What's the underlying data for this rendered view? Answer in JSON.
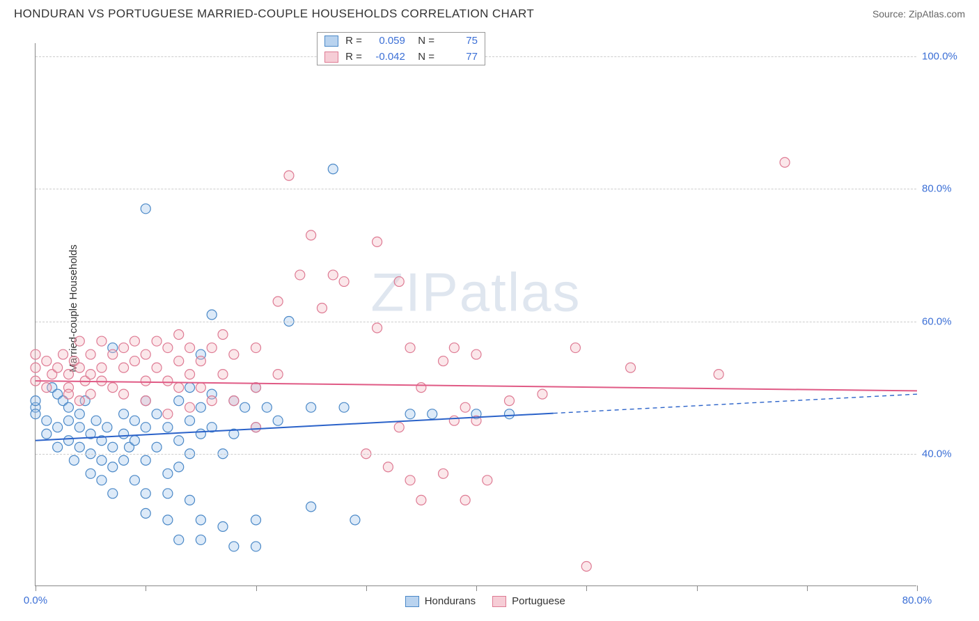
{
  "title": "HONDURAN VS PORTUGUESE MARRIED-COUPLE HOUSEHOLDS CORRELATION CHART",
  "source": "Source: ZipAtlas.com",
  "watermark": "ZIPatlas",
  "y_axis_title": "Married-couple Households",
  "chart": {
    "type": "scatter",
    "xlim": [
      0,
      80
    ],
    "ylim": [
      20,
      102
    ],
    "x_ticks": [
      0,
      10,
      20,
      30,
      40,
      50,
      60,
      70,
      80
    ],
    "x_tick_labels": {
      "0": "0.0%",
      "80": "80.0%"
    },
    "y_grid": [
      40,
      60,
      80,
      100
    ],
    "y_labels": [
      "40.0%",
      "60.0%",
      "80.0%",
      "100.0%"
    ],
    "background_color": "#ffffff",
    "grid_color": "#cccccc",
    "marker_radius": 7,
    "series": [
      {
        "name": "Hondurans",
        "fill": "#9ec4ea",
        "stroke": "#4a88c7",
        "trend": {
          "y_at_x0": 42.0,
          "y_at_x80": 49.0,
          "solid_until_x": 47,
          "color": "#2a62c9"
        },
        "points": [
          [
            0,
            47
          ],
          [
            0,
            46
          ],
          [
            0,
            48
          ],
          [
            1,
            43
          ],
          [
            1,
            45
          ],
          [
            1.5,
            50
          ],
          [
            2,
            44
          ],
          [
            2,
            41
          ],
          [
            2,
            49
          ],
          [
            2.5,
            48
          ],
          [
            3,
            42
          ],
          [
            3,
            45
          ],
          [
            3,
            47
          ],
          [
            3.5,
            39
          ],
          [
            4,
            46
          ],
          [
            4,
            44
          ],
          [
            4,
            41
          ],
          [
            4.5,
            48
          ],
          [
            5,
            43
          ],
          [
            5,
            40
          ],
          [
            5,
            37
          ],
          [
            5.5,
            45
          ],
          [
            6,
            42
          ],
          [
            6,
            39
          ],
          [
            6,
            36
          ],
          [
            6.5,
            44
          ],
          [
            7,
            56
          ],
          [
            7,
            41
          ],
          [
            7,
            38
          ],
          [
            7,
            34
          ],
          [
            8,
            46
          ],
          [
            8,
            43
          ],
          [
            8,
            39
          ],
          [
            8.5,
            41
          ],
          [
            9,
            45
          ],
          [
            9,
            42
          ],
          [
            9,
            36
          ],
          [
            10,
            48
          ],
          [
            10,
            44
          ],
          [
            10,
            39
          ],
          [
            10,
            34
          ],
          [
            10,
            31
          ],
          [
            10,
            77
          ],
          [
            11,
            46
          ],
          [
            11,
            41
          ],
          [
            12,
            44
          ],
          [
            12,
            37
          ],
          [
            12,
            34
          ],
          [
            12,
            30
          ],
          [
            13,
            48
          ],
          [
            13,
            42
          ],
          [
            13,
            38
          ],
          [
            13,
            27
          ],
          [
            14,
            50
          ],
          [
            14,
            45
          ],
          [
            14,
            40
          ],
          [
            14,
            33
          ],
          [
            15,
            55
          ],
          [
            15,
            47
          ],
          [
            15,
            43
          ],
          [
            15,
            30
          ],
          [
            15,
            27
          ],
          [
            16,
            49
          ],
          [
            16,
            61
          ],
          [
            16,
            44
          ],
          [
            17,
            40
          ],
          [
            17,
            29
          ],
          [
            18,
            48
          ],
          [
            18,
            43
          ],
          [
            18,
            26
          ],
          [
            19,
            47
          ],
          [
            20,
            50
          ],
          [
            20,
            44
          ],
          [
            20,
            30
          ],
          [
            20,
            26
          ],
          [
            21,
            47
          ],
          [
            22,
            45
          ],
          [
            23,
            60
          ],
          [
            25,
            47
          ],
          [
            25,
            32
          ],
          [
            27,
            83
          ],
          [
            28,
            47
          ],
          [
            29,
            30
          ],
          [
            34,
            46
          ],
          [
            36,
            46
          ],
          [
            40,
            46
          ],
          [
            43,
            46
          ]
        ]
      },
      {
        "name": "Portuguese",
        "fill": "#f4b9c4",
        "stroke": "#de7a93",
        "trend": {
          "y_at_x0": 51.0,
          "y_at_x80": 49.5,
          "solid_until_x": 80,
          "color": "#e05a85"
        },
        "points": [
          [
            0,
            53
          ],
          [
            0,
            51
          ],
          [
            0,
            55
          ],
          [
            1,
            50
          ],
          [
            1,
            54
          ],
          [
            1.5,
            52
          ],
          [
            2,
            53
          ],
          [
            2.5,
            55
          ],
          [
            3,
            52
          ],
          [
            3,
            50
          ],
          [
            3,
            49
          ],
          [
            3.5,
            54
          ],
          [
            4,
            53
          ],
          [
            4,
            48
          ],
          [
            4,
            57
          ],
          [
            4.5,
            51
          ],
          [
            5,
            55
          ],
          [
            5,
            52
          ],
          [
            5,
            49
          ],
          [
            6,
            57
          ],
          [
            6,
            53
          ],
          [
            6,
            51
          ],
          [
            7,
            55
          ],
          [
            7,
            50
          ],
          [
            8,
            56
          ],
          [
            8,
            53
          ],
          [
            8,
            49
          ],
          [
            9,
            57
          ],
          [
            9,
            54
          ],
          [
            10,
            55
          ],
          [
            10,
            51
          ],
          [
            10,
            48
          ],
          [
            11,
            57
          ],
          [
            11,
            53
          ],
          [
            12,
            56
          ],
          [
            12,
            51
          ],
          [
            12,
            46
          ],
          [
            13,
            58
          ],
          [
            13,
            54
          ],
          [
            13,
            50
          ],
          [
            14,
            56
          ],
          [
            14,
            52
          ],
          [
            14,
            47
          ],
          [
            15,
            54
          ],
          [
            15,
            50
          ],
          [
            16,
            56
          ],
          [
            16,
            48
          ],
          [
            17,
            58
          ],
          [
            17,
            52
          ],
          [
            18,
            55
          ],
          [
            18,
            48
          ],
          [
            20,
            56
          ],
          [
            20,
            50
          ],
          [
            20,
            44
          ],
          [
            22,
            63
          ],
          [
            22,
            52
          ],
          [
            23,
            82
          ],
          [
            24,
            67
          ],
          [
            25,
            73
          ],
          [
            26,
            62
          ],
          [
            27,
            67
          ],
          [
            28,
            66
          ],
          [
            30,
            40
          ],
          [
            31,
            59
          ],
          [
            31,
            72
          ],
          [
            32,
            38
          ],
          [
            33,
            66
          ],
          [
            33,
            44
          ],
          [
            34,
            56
          ],
          [
            34,
            36
          ],
          [
            35,
            50
          ],
          [
            35,
            33
          ],
          [
            37,
            54
          ],
          [
            37,
            37
          ],
          [
            38,
            56
          ],
          [
            38,
            45
          ],
          [
            39,
            47
          ],
          [
            39,
            33
          ],
          [
            40,
            55
          ],
          [
            40,
            45
          ],
          [
            41,
            36
          ],
          [
            43,
            48
          ],
          [
            46,
            49
          ],
          [
            49,
            56
          ],
          [
            50,
            23
          ],
          [
            54,
            53
          ],
          [
            62,
            52
          ],
          [
            68,
            84
          ]
        ]
      }
    ]
  },
  "stats": {
    "rows": [
      {
        "swatch_fill": "#b9d3ef",
        "swatch_stroke": "#4a88c7",
        "r": "0.059",
        "n": "75"
      },
      {
        "swatch_fill": "#f6cdd6",
        "swatch_stroke": "#de7a93",
        "r": "-0.042",
        "n": "77"
      }
    ],
    "r_label": "R =",
    "n_label": "N ="
  },
  "legend": {
    "items": [
      {
        "label": "Hondurans",
        "fill": "#b9d3ef",
        "stroke": "#4a88c7"
      },
      {
        "label": "Portuguese",
        "fill": "#f6cdd6",
        "stroke": "#de7a93"
      }
    ]
  }
}
